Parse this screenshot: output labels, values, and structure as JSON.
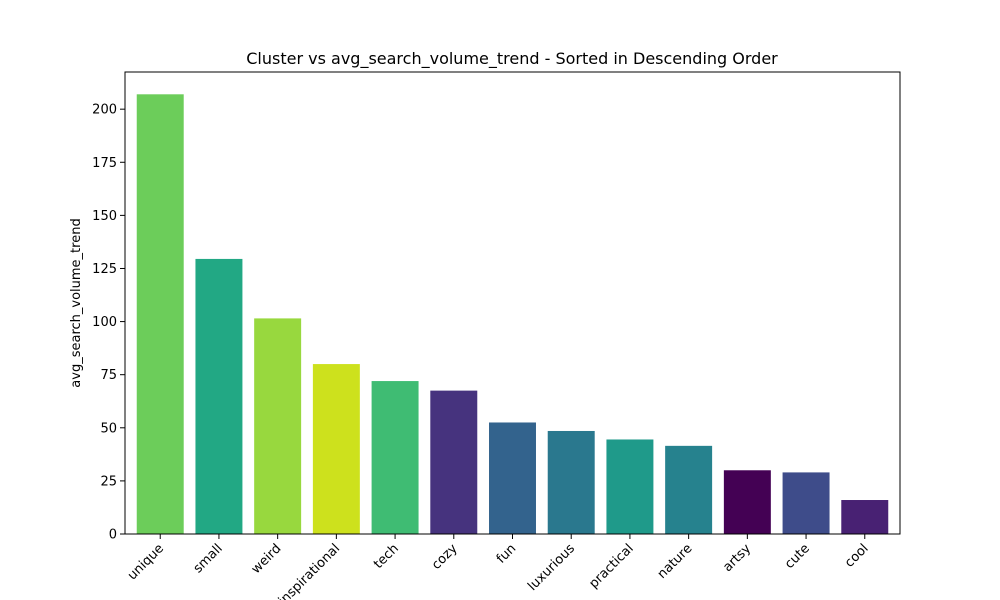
{
  "chart_data": {
    "type": "bar",
    "title": "Cluster vs avg_search_volume_trend - Sorted in Descending Order",
    "xlabel": "",
    "ylabel": "avg_search_volume_trend",
    "categories": [
      "unique",
      "small",
      "weird",
      "inspirational",
      "tech",
      "cozy",
      "fun",
      "luxurious",
      "practical",
      "nature",
      "artsy",
      "cute",
      "cool"
    ],
    "values": [
      207,
      129.5,
      101.5,
      80,
      72,
      67.5,
      52.5,
      48.5,
      44.5,
      41.5,
      30,
      29,
      16
    ],
    "colors": [
      "#6ccd5a",
      "#22a884",
      "#98d83e",
      "#cde11d",
      "#3fbc73",
      "#46337e",
      "#33638d",
      "#2a788e",
      "#1f9a8a",
      "#26828e",
      "#440154",
      "#3e4c8a",
      "#482173"
    ],
    "yticks": [
      0,
      25,
      50,
      75,
      100,
      125,
      150,
      175,
      200
    ],
    "ylim": [
      0,
      217.5
    ],
    "grid": false
  }
}
